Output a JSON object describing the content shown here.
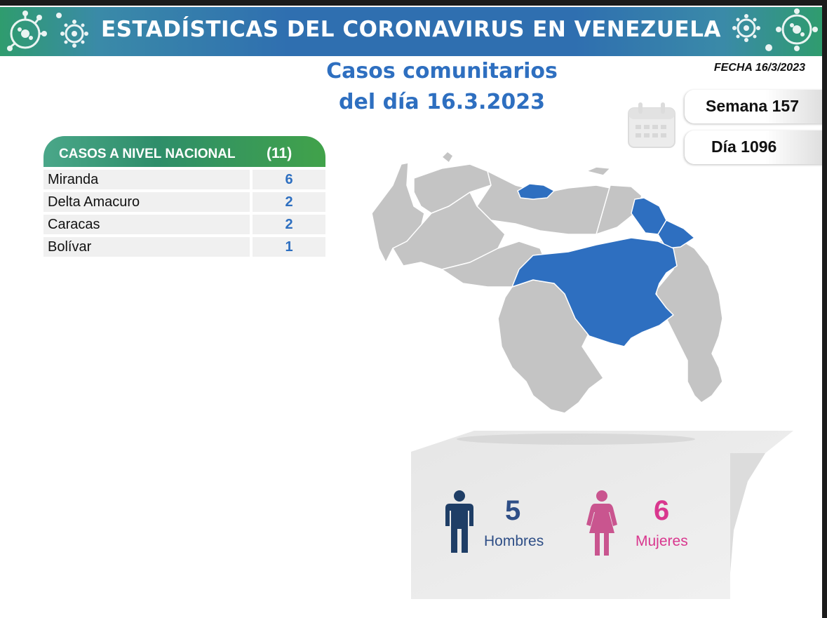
{
  "header": {
    "title": "ESTADÍSTICAS DEL CORONAVIRUS EN VENEZUELA",
    "fecha": "FECHA 16/3/2023",
    "subtitle_line1": "Casos comunitarios",
    "subtitle_line2": "del día 16.3.2023"
  },
  "counters": {
    "semana": "Semana 157",
    "dia": "Día 1096"
  },
  "table": {
    "header_label": "CASOS A NIVEL NACIONAL",
    "header_count": "(11)",
    "rows": [
      {
        "state": "Miranda",
        "cases": "6"
      },
      {
        "state": "Delta Amacuro",
        "cases": "2"
      },
      {
        "state": "Caracas",
        "cases": "2"
      },
      {
        "state": "Bolívar",
        "cases": "1"
      }
    ]
  },
  "gender": {
    "men_count": "5",
    "men_label": "Hombres",
    "women_count": "6",
    "women_label": "Mujeres"
  },
  "colors": {
    "accent_blue": "#2e6fc0",
    "highlight_state": "#2e6fc0",
    "other_state": "#c4c4c4",
    "men": "#1f3e66",
    "women": "#c9558f"
  },
  "icons": [
    "virus-icon",
    "calendar-icon",
    "male-person-icon",
    "female-person-icon"
  ]
}
